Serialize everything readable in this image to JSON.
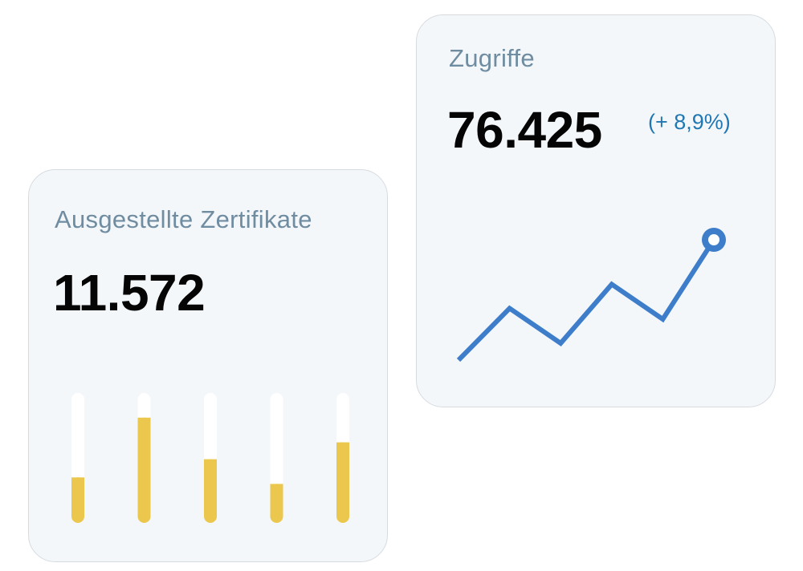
{
  "cards": {
    "zugriffe": {
      "title": "Zugriffe",
      "value": "76.425",
      "delta": "(+ 8,9%)"
    },
    "zertifikate": {
      "title": "Ausgestellte Zertifikate",
      "value": "11.572"
    }
  },
  "colors": {
    "card_background": "#f4f7fa",
    "title": "#6f8ca1",
    "value": "#050505",
    "delta": "#1f78b4",
    "line": "#3d7dca",
    "bar_fill": "#ebc84d",
    "bar_track": "#ffffff"
  },
  "chart_data": [
    {
      "type": "line",
      "x": [
        1,
        2,
        3,
        4,
        5,
        6
      ],
      "values": [
        0,
        0.43,
        0.14,
        0.63,
        0.34,
        1.0
      ],
      "last_point_marker": "ring"
    },
    {
      "type": "bar",
      "categories": [
        "1",
        "2",
        "3",
        "4",
        "5"
      ],
      "values": [
        0.35,
        0.81,
        0.49,
        0.3,
        0.62
      ],
      "ylim": [
        0,
        1
      ]
    }
  ]
}
